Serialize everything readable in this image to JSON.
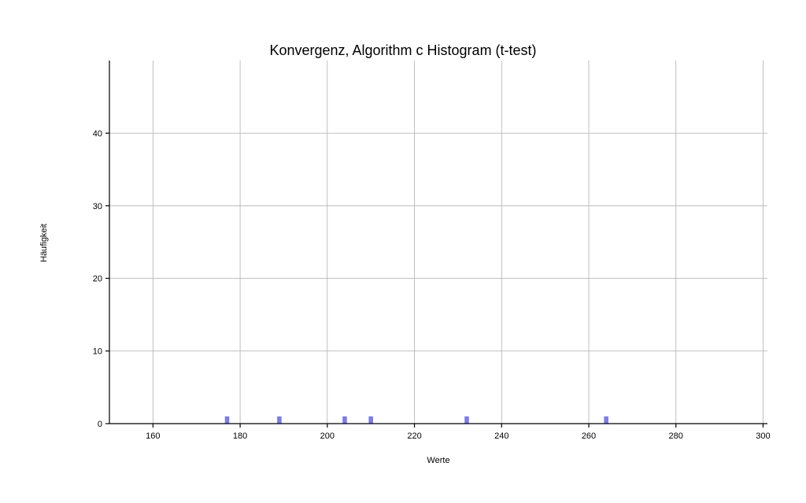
{
  "chart_data": {
    "type": "bar",
    "title": "Konvergenz, Algorithm c Histogram (t-test)",
    "xlabel": "Werte",
    "ylabel": "Häufigkeit",
    "xlim": [
      150,
      301
    ],
    "ylim": [
      0,
      50
    ],
    "x_ticks": [
      160,
      180,
      200,
      220,
      240,
      260,
      280,
      300
    ],
    "y_ticks": [
      0,
      10,
      20,
      30,
      40
    ],
    "bin_width": 1,
    "bars": [
      {
        "x": 177,
        "count": 1
      },
      {
        "x": 189,
        "count": 1
      },
      {
        "x": 204,
        "count": 1
      },
      {
        "x": 210,
        "count": 1
      },
      {
        "x": 232,
        "count": 1
      },
      {
        "x": 264,
        "count": 1
      }
    ],
    "bar_color": "#7b7bf0",
    "grid": true
  }
}
